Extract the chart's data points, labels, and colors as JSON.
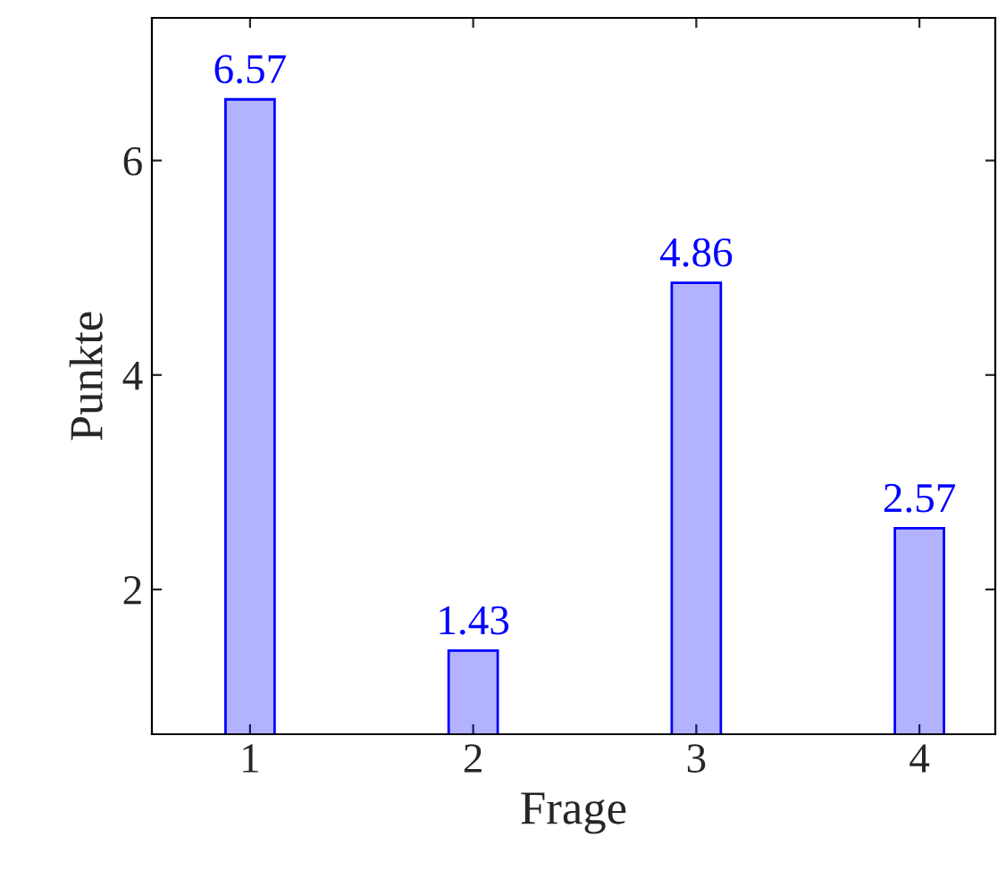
{
  "chart_data": {
    "type": "bar",
    "xlabel": "Frage",
    "ylabel": "Punkte",
    "x": [
      1,
      2,
      3,
      4
    ],
    "series": [
      {
        "color": "#0000ff",
        "values": [
          6.57,
          1.43,
          4.86,
          2.57
        ]
      }
    ],
    "xlim": [
      0.56,
      4.34
    ],
    "xticks": [
      1,
      2,
      3,
      4
    ],
    "ylim": [
      0.65,
      7.33
    ],
    "yticks": [
      2,
      4,
      6
    ],
    "data_labels": true,
    "grid": false,
    "legend": false
  }
}
